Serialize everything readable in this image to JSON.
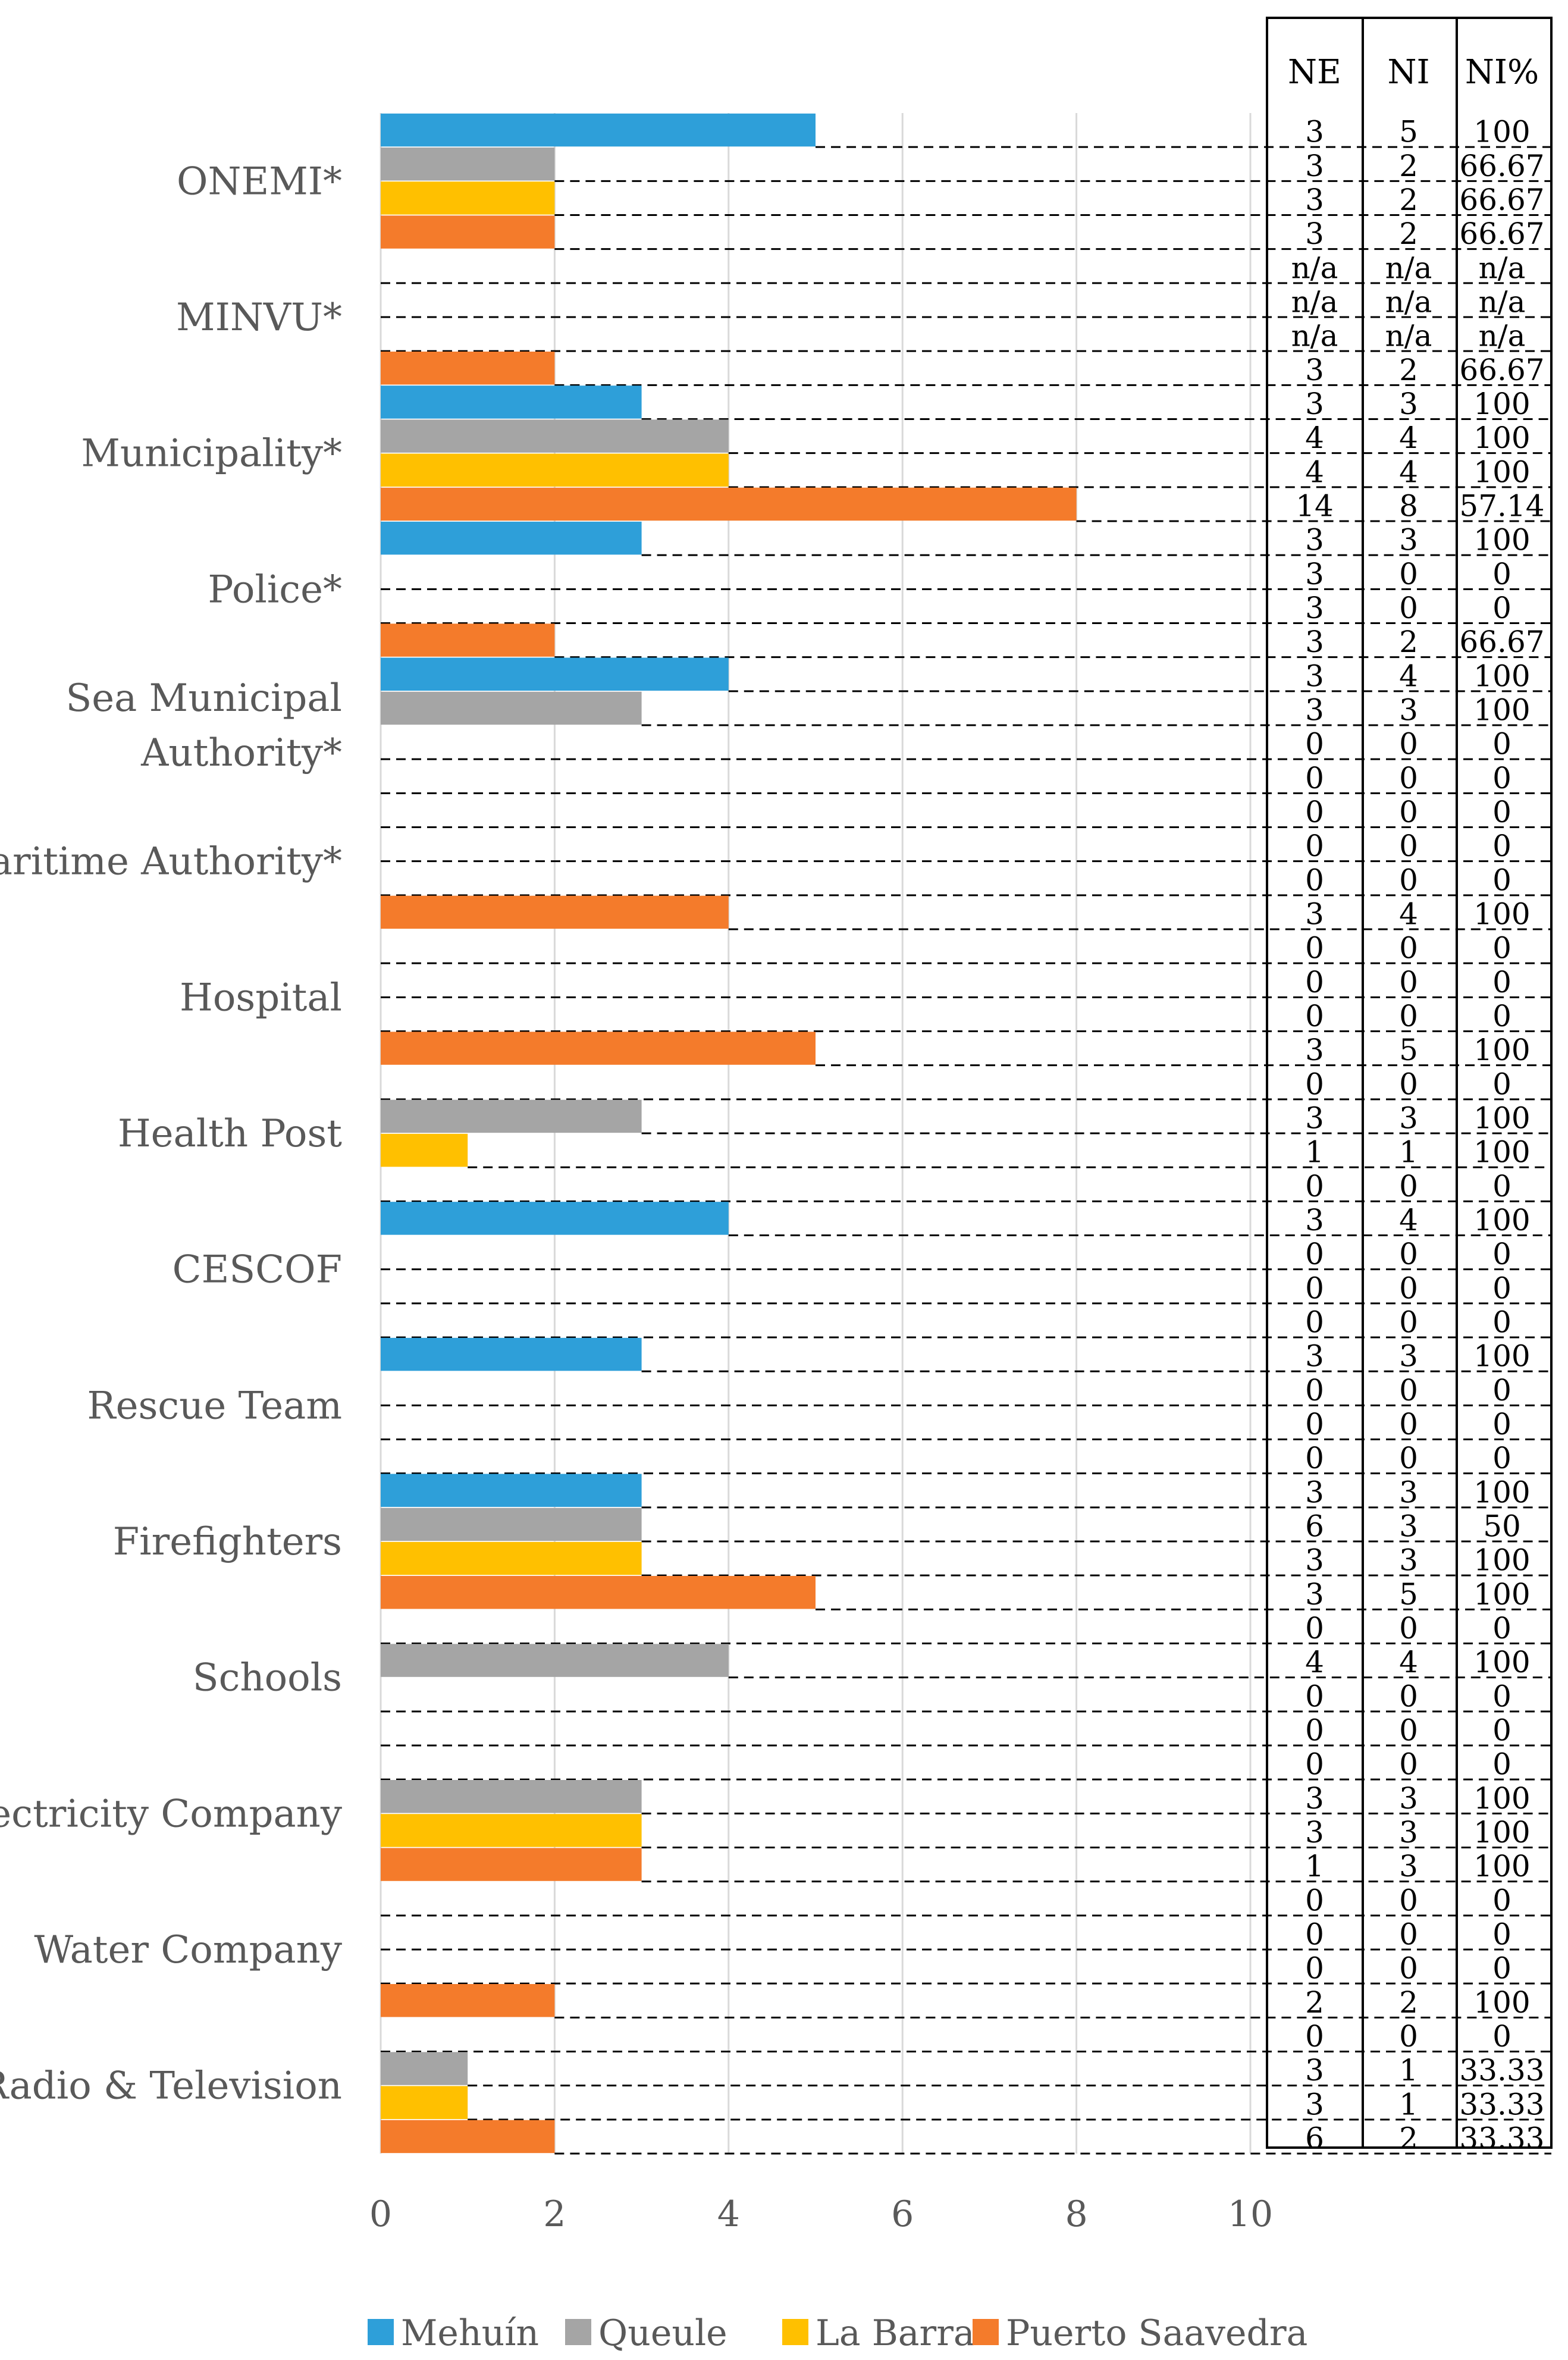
{
  "chart_data": {
    "type": "bar",
    "orientation": "horizontal",
    "title": "",
    "xlabel": "",
    "ylabel": "",
    "xlim": [
      0,
      10
    ],
    "xticks": [
      "0",
      "2",
      "4",
      "6",
      "8",
      "10"
    ],
    "grid": true,
    "legend_position": "bottom",
    "table_headers": [
      "NE",
      "NI",
      "NI%"
    ],
    "series_names": [
      "Mehuín",
      "Queule",
      "La Barra",
      "Puerto Saavedra"
    ],
    "series_colors": [
      "#2E9FD9",
      "#A5A5A5",
      "#FFC000",
      "#F47B2B"
    ],
    "categories": [
      {
        "label_lines": [
          "ONEMI*"
        ],
        "rows": [
          {
            "value": 5,
            "ne": "3",
            "ni": "5",
            "pct": "100"
          },
          {
            "value": 2,
            "ne": "3",
            "ni": "2",
            "pct": "66.67"
          },
          {
            "value": 2,
            "ne": "3",
            "ni": "2",
            "pct": "66.67"
          },
          {
            "value": 2,
            "ne": "3",
            "ni": "2",
            "pct": "66.67"
          }
        ]
      },
      {
        "label_lines": [
          "MINVU*"
        ],
        "rows": [
          {
            "value": 0,
            "ne": "n/a",
            "ni": "n/a",
            "pct": "n/a"
          },
          {
            "value": 0,
            "ne": "n/a",
            "ni": "n/a",
            "pct": "n/a"
          },
          {
            "value": 0,
            "ne": "n/a",
            "ni": "n/a",
            "pct": "n/a"
          },
          {
            "value": 2,
            "ne": "3",
            "ni": "2",
            "pct": "66.67"
          }
        ]
      },
      {
        "label_lines": [
          "Municipality*"
        ],
        "rows": [
          {
            "value": 3,
            "ne": "3",
            "ni": "3",
            "pct": "100"
          },
          {
            "value": 4,
            "ne": "4",
            "ni": "4",
            "pct": "100"
          },
          {
            "value": 4,
            "ne": "4",
            "ni": "4",
            "pct": "100"
          },
          {
            "value": 8,
            "ne": "14",
            "ni": "8",
            "pct": "57.14"
          }
        ]
      },
      {
        "label_lines": [
          "Police*"
        ],
        "rows": [
          {
            "value": 3,
            "ne": "3",
            "ni": "3",
            "pct": "100"
          },
          {
            "value": 0,
            "ne": "3",
            "ni": "0",
            "pct": "0"
          },
          {
            "value": 0,
            "ne": "3",
            "ni": "0",
            "pct": "0"
          },
          {
            "value": 2,
            "ne": "3",
            "ni": "2",
            "pct": "66.67"
          }
        ]
      },
      {
        "label_lines": [
          "Sea Municipal",
          "Authority*"
        ],
        "rows": [
          {
            "value": 4,
            "ne": "3",
            "ni": "4",
            "pct": "100"
          },
          {
            "value": 3,
            "ne": "3",
            "ni": "3",
            "pct": "100"
          },
          {
            "value": 0,
            "ne": "0",
            "ni": "0",
            "pct": "0"
          },
          {
            "value": 0,
            "ne": "0",
            "ni": "0",
            "pct": "0"
          }
        ]
      },
      {
        "label_lines": [
          "Maritime Authority*"
        ],
        "rows": [
          {
            "value": 0,
            "ne": "0",
            "ni": "0",
            "pct": "0"
          },
          {
            "value": 0,
            "ne": "0",
            "ni": "0",
            "pct": "0"
          },
          {
            "value": 0,
            "ne": "0",
            "ni": "0",
            "pct": "0"
          },
          {
            "value": 4,
            "ne": "3",
            "ni": "4",
            "pct": "100"
          }
        ]
      },
      {
        "label_lines": [
          "Hospital"
        ],
        "rows": [
          {
            "value": 0,
            "ne": "0",
            "ni": "0",
            "pct": "0"
          },
          {
            "value": 0,
            "ne": "0",
            "ni": "0",
            "pct": "0"
          },
          {
            "value": 0,
            "ne": "0",
            "ni": "0",
            "pct": "0"
          },
          {
            "value": 5,
            "ne": "3",
            "ni": "5",
            "pct": "100"
          }
        ]
      },
      {
        "label_lines": [
          "Health Post"
        ],
        "rows": [
          {
            "value": 0,
            "ne": "0",
            "ni": "0",
            "pct": "0"
          },
          {
            "value": 3,
            "ne": "3",
            "ni": "3",
            "pct": "100"
          },
          {
            "value": 1,
            "ne": "1",
            "ni": "1",
            "pct": "100"
          },
          {
            "value": 0,
            "ne": "0",
            "ni": "0",
            "pct": "0"
          }
        ]
      },
      {
        "label_lines": [
          "CESCOF"
        ],
        "rows": [
          {
            "value": 4,
            "ne": "3",
            "ni": "4",
            "pct": "100"
          },
          {
            "value": 0,
            "ne": "0",
            "ni": "0",
            "pct": "0"
          },
          {
            "value": 0,
            "ne": "0",
            "ni": "0",
            "pct": "0"
          },
          {
            "value": 0,
            "ne": "0",
            "ni": "0",
            "pct": "0"
          }
        ]
      },
      {
        "label_lines": [
          "Rescue Team"
        ],
        "rows": [
          {
            "value": 3,
            "ne": "3",
            "ni": "3",
            "pct": "100"
          },
          {
            "value": 0,
            "ne": "0",
            "ni": "0",
            "pct": "0"
          },
          {
            "value": 0,
            "ne": "0",
            "ni": "0",
            "pct": "0"
          },
          {
            "value": 0,
            "ne": "0",
            "ni": "0",
            "pct": "0"
          }
        ]
      },
      {
        "label_lines": [
          "Firefighters"
        ],
        "rows": [
          {
            "value": 3,
            "ne": "3",
            "ni": "3",
            "pct": "100"
          },
          {
            "value": 3,
            "ne": "6",
            "ni": "3",
            "pct": "50"
          },
          {
            "value": 3,
            "ne": "3",
            "ni": "3",
            "pct": "100"
          },
          {
            "value": 5,
            "ne": "3",
            "ni": "5",
            "pct": "100"
          }
        ]
      },
      {
        "label_lines": [
          "Schools"
        ],
        "rows": [
          {
            "value": 0,
            "ne": "0",
            "ni": "0",
            "pct": "0"
          },
          {
            "value": 4,
            "ne": "4",
            "ni": "4",
            "pct": "100"
          },
          {
            "value": 0,
            "ne": "0",
            "ni": "0",
            "pct": "0"
          },
          {
            "value": 0,
            "ne": "0",
            "ni": "0",
            "pct": "0"
          }
        ]
      },
      {
        "label_lines": [
          "Electricity Company"
        ],
        "rows": [
          {
            "value": 0,
            "ne": "0",
            "ni": "0",
            "pct": "0"
          },
          {
            "value": 3,
            "ne": "3",
            "ni": "3",
            "pct": "100"
          },
          {
            "value": 3,
            "ne": "3",
            "ni": "3",
            "pct": "100"
          },
          {
            "value": 3,
            "ne": "1",
            "ni": "3",
            "pct": "100"
          }
        ]
      },
      {
        "label_lines": [
          "Water Company"
        ],
        "rows": [
          {
            "value": 0,
            "ne": "0",
            "ni": "0",
            "pct": "0"
          },
          {
            "value": 0,
            "ne": "0",
            "ni": "0",
            "pct": "0"
          },
          {
            "value": 0,
            "ne": "0",
            "ni": "0",
            "pct": "0"
          },
          {
            "value": 2,
            "ne": "2",
            "ni": "2",
            "pct": "100"
          }
        ]
      },
      {
        "label_lines": [
          "Radio & Television"
        ],
        "rows": [
          {
            "value": 0,
            "ne": "0",
            "ni": "0",
            "pct": "0"
          },
          {
            "value": 1,
            "ne": "3",
            "ni": "1",
            "pct": "33.33"
          },
          {
            "value": 1,
            "ne": "3",
            "ni": "1",
            "pct": "33.33"
          },
          {
            "value": 2,
            "ne": "6",
            "ni": "2",
            "pct": "33.33"
          }
        ]
      }
    ]
  }
}
